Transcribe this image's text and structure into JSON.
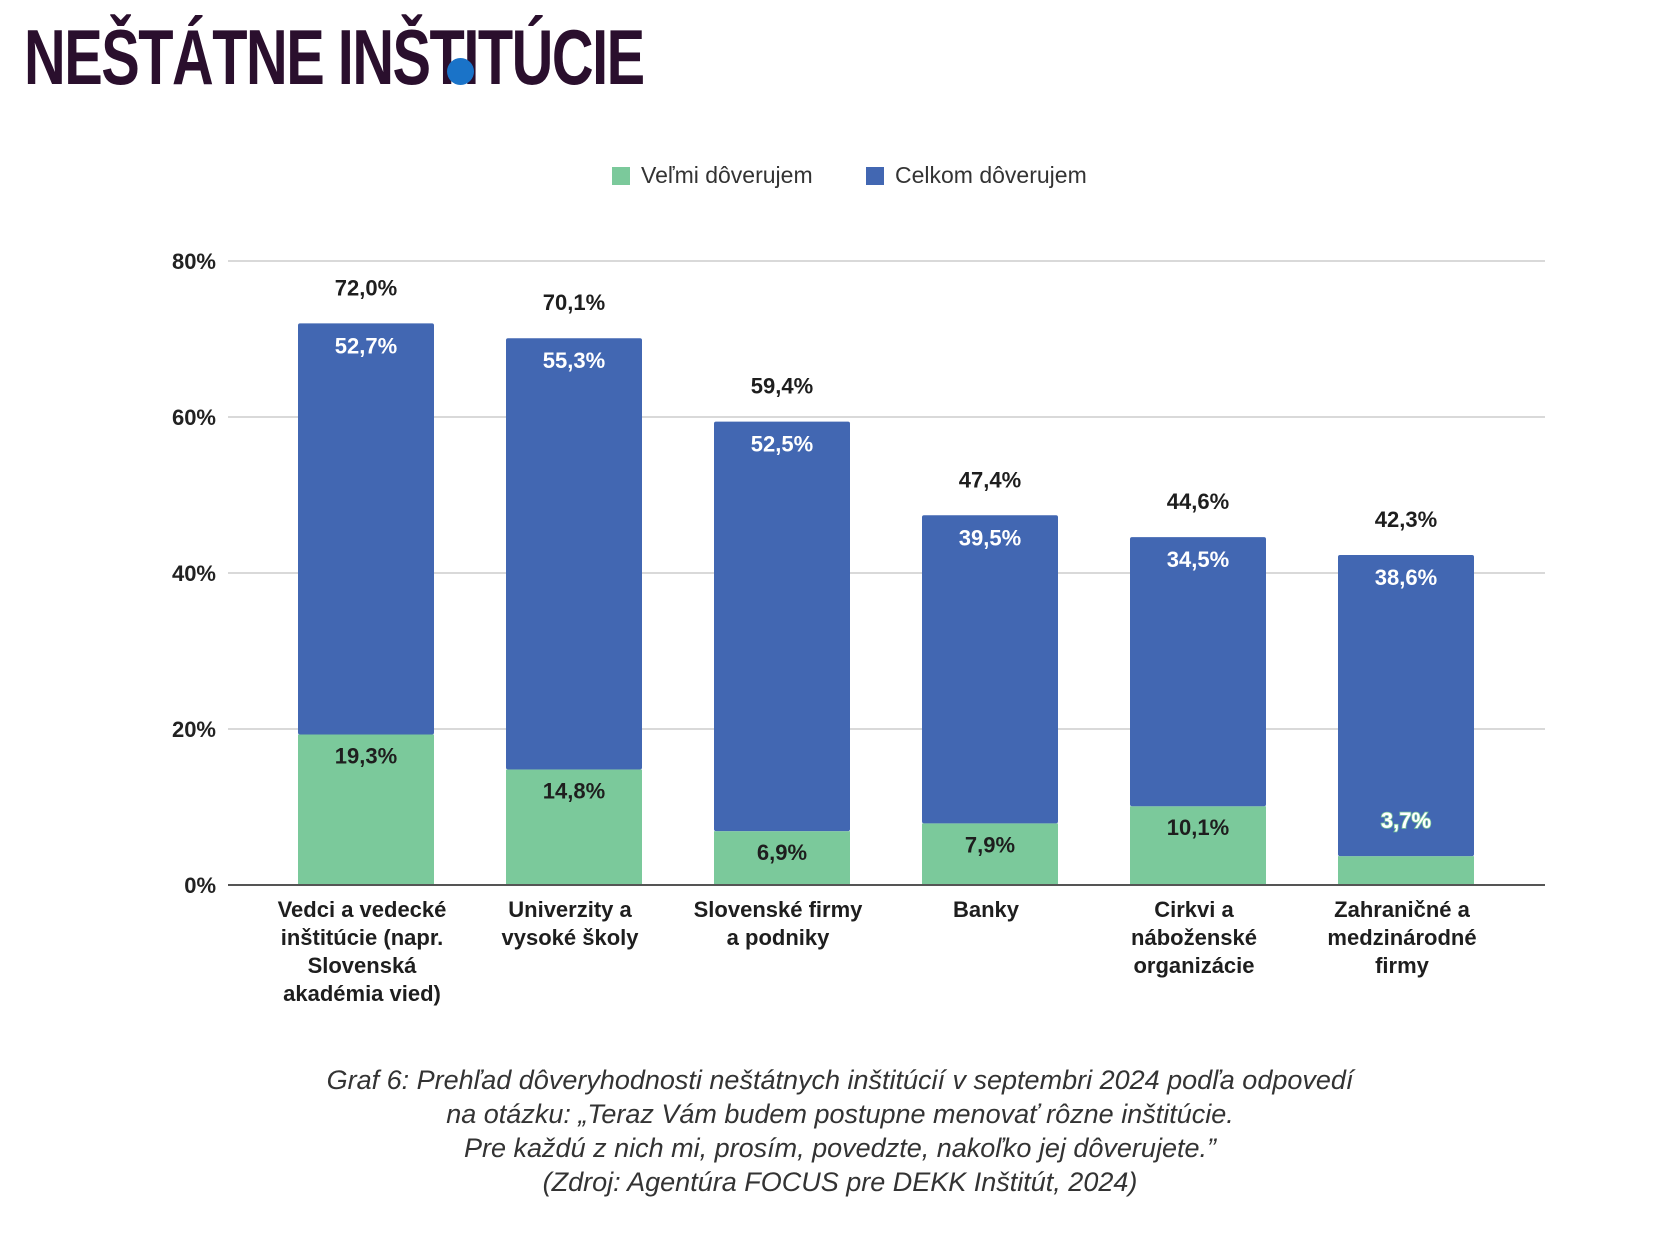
{
  "heading": "NEŠTÁTNE INŠTITÚCIE",
  "colors": {
    "heading": "#2a0f2d",
    "accent_dot": "#1a73c8",
    "very_trust": "#7bc99b",
    "rather_trust": "#4267b2",
    "grid": "#d9d9d9",
    "axis": "#555555"
  },
  "chart_data": {
    "type": "bar",
    "stacked": true,
    "legend_position": "top-center",
    "grid": true,
    "categories": [
      [
        "Vedci a vedecké",
        "inštitúcie (napr.",
        "Slovenská",
        "akadémia vied)"
      ],
      [
        "Univerzity a",
        "vysoké školy"
      ],
      [
        "Slovenské firmy",
        "a podniky"
      ],
      [
        "Banky"
      ],
      [
        "Cirkvi a",
        "náboženské",
        "organizácie"
      ],
      [
        "Zahraničné a",
        "medzinárodné",
        "firmy"
      ]
    ],
    "series": [
      {
        "name": "Veľmi dôverujem",
        "color": "#7bc99b",
        "values": [
          19.3,
          14.8,
          6.9,
          7.9,
          10.1,
          3.7
        ],
        "labels": [
          "19,3%",
          "14,8%",
          "6,9%",
          "7,9%",
          "10,1%",
          "3,7%"
        ]
      },
      {
        "name": "Celkom dôverujem",
        "color": "#4267b2",
        "values": [
          52.7,
          55.3,
          52.5,
          39.5,
          34.5,
          38.6
        ],
        "labels": [
          "52,7%",
          "55,3%",
          "52,5%",
          "39,5%",
          "34,5%",
          "38,6%"
        ]
      }
    ],
    "totals": [
      72.0,
      70.1,
      59.4,
      47.4,
      44.6,
      42.3
    ],
    "total_labels": [
      "72,0%",
      "70,1%",
      "59,4%",
      "47,4%",
      "44,6%",
      "42,3%"
    ],
    "y_ticks": [
      0,
      20,
      40,
      60,
      80
    ],
    "y_tick_labels": [
      "0%",
      "20%",
      "40%",
      "60%",
      "80%"
    ],
    "ylim": [
      0,
      80
    ]
  },
  "caption": [
    "Graf 6: Prehľad dôveryhodnosti neštátnych inštitúcií v septembri 2024 podľa odpovedí",
    "na otázku: „Teraz Vám budem postupne menovať rôzne inštitúcie.",
    "Pre každú z nich mi, prosím, povedzte, nakoľko jej dôverujete.”",
    "(Zdroj: Agentúra FOCUS pre DEKK Inštitút, 2024)"
  ]
}
